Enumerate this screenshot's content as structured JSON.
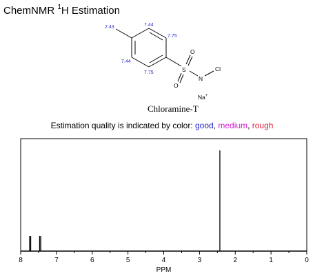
{
  "header": {
    "title_pre": "ChemNMR ",
    "title_sup": "1",
    "title_post": "H Estimation"
  },
  "molecule": {
    "name": "Chloramine-T",
    "atoms": {
      "S": "S",
      "N": "N",
      "Cl": "Cl",
      "O_top": "O",
      "O_bottom": "O",
      "Na": "Na",
      "charge": "+"
    },
    "shift_labels": {
      "methyl": "2.43",
      "h_top_left": "7.44",
      "h_top_right": "7.75",
      "h_bottom_left": "7.44",
      "h_bottom_right": "7.75"
    }
  },
  "quality": {
    "prefix": "Estimation quality is indicated by color: ",
    "good": "good",
    "sep1": ", ",
    "medium": "medium",
    "sep2": ", ",
    "rough": "rough",
    "colors": {
      "good": "#1f1fc8",
      "medium": "#d020d0",
      "rough": "#e0203c"
    }
  },
  "chart_data": {
    "type": "line",
    "xlabel": "PPM",
    "xlim": [
      8,
      0
    ],
    "x_reversed": true,
    "tick_labels": [
      "8",
      "7",
      "6",
      "5",
      "4",
      "3",
      "2",
      "1",
      "0"
    ],
    "peaks": [
      {
        "ppm": 7.75,
        "relative_height": 0.15
      },
      {
        "ppm": 7.72,
        "relative_height": 0.15
      },
      {
        "ppm": 7.47,
        "relative_height": 0.15
      },
      {
        "ppm": 7.44,
        "relative_height": 0.15
      },
      {
        "ppm": 2.43,
        "relative_height": 1.0
      }
    ]
  }
}
